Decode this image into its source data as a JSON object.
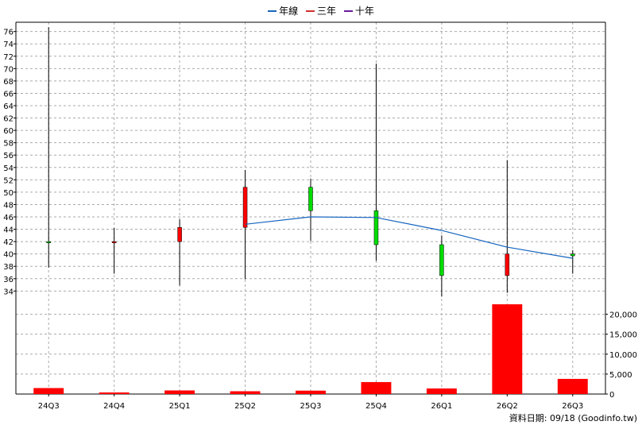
{
  "legend": [
    {
      "name": "年線",
      "color": "#1565c0"
    },
    {
      "name": "三年",
      "color": "#d32f2f"
    },
    {
      "name": "十年",
      "color": "#6a1b9a"
    }
  ],
  "footer": "資料日期: 09/18  (Goodinfo.tw)",
  "chart_data": {
    "type": "candlestick",
    "categories": [
      "24Q3",
      "24Q4",
      "25Q1",
      "25Q2",
      "25Q3",
      "25Q4",
      "26Q1",
      "26Q2",
      "26Q3"
    ],
    "ohlc": [
      {
        "open": 42.0,
        "high": 76.7,
        "low": 37.8,
        "close": 41.8
      },
      {
        "open": 41.8,
        "high": 44.2,
        "low": 36.8,
        "close": 42.0
      },
      {
        "open": 42.0,
        "high": 45.6,
        "low": 34.9,
        "close": 44.3
      },
      {
        "open": 44.3,
        "high": 53.6,
        "low": 35.9,
        "close": 50.8
      },
      {
        "open": 50.8,
        "high": 52.2,
        "low": 42.1,
        "close": 47.0
      },
      {
        "open": 47.0,
        "high": 70.8,
        "low": 38.9,
        "close": 41.5
      },
      {
        "open": 41.5,
        "high": 43.0,
        "low": 33.1,
        "close": 36.5
      },
      {
        "open": 36.5,
        "high": 55.2,
        "low": 33.7,
        "close": 40.0
      },
      {
        "open": 40.0,
        "high": 40.6,
        "low": 36.8,
        "close": 39.7
      }
    ],
    "series": [
      {
        "name": "年線",
        "values": [
          null,
          null,
          null,
          44.8,
          46.0,
          45.9,
          43.8,
          41.1,
          39.3
        ]
      }
    ],
    "ylim": [
      32.5,
      77.5
    ],
    "yticks": [
      34,
      36,
      38,
      40,
      42,
      44,
      46,
      48,
      50,
      52,
      54,
      56,
      58,
      60,
      62,
      64,
      66,
      68,
      70,
      72,
      74,
      76
    ],
    "volume": {
      "values": [
        1500,
        400,
        900,
        700,
        850,
        3000,
        1400,
        22500,
        3800
      ],
      "ylim": [
        0,
        23500
      ],
      "yticks": [
        0,
        5000,
        10000,
        15000,
        20000
      ],
      "yticklabels": [
        "0",
        "5,000",
        "10,000",
        "15,000",
        "20,000"
      ]
    },
    "grid": true
  }
}
